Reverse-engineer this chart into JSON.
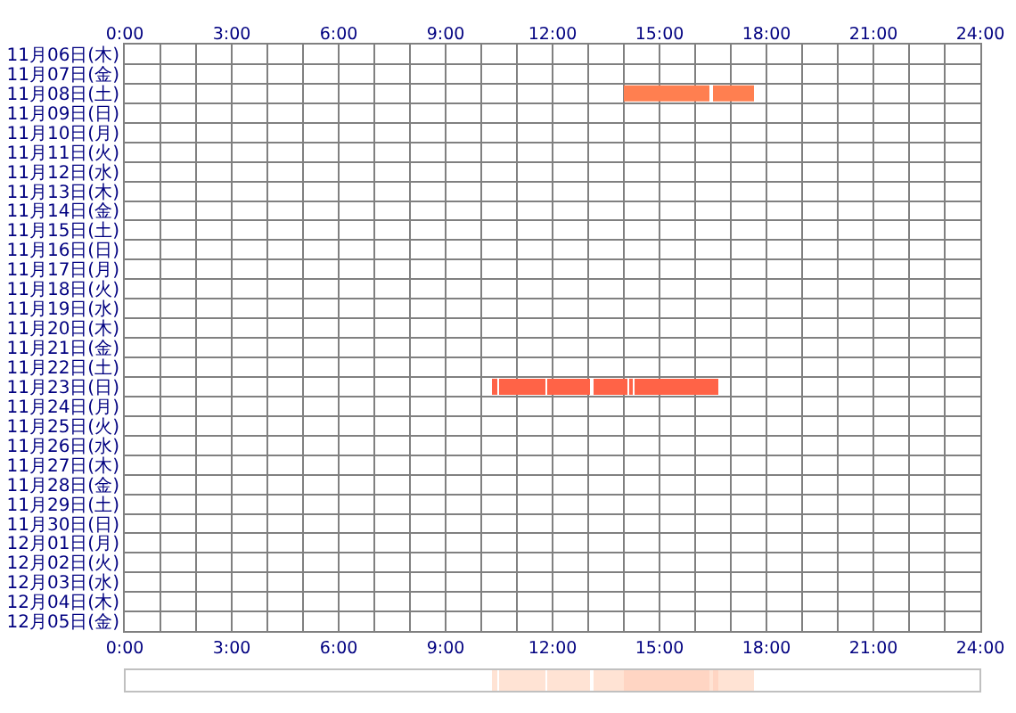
{
  "chart_data": [
    {
      "type": "bar",
      "orientation": "horizontal",
      "categories": [
        "11月06日(木)",
        "11月07日(金)",
        "11月08日(土)",
        "11月09日(日)",
        "11月10日(月)",
        "11月11日(火)",
        "11月12日(水)",
        "11月13日(木)",
        "11月14日(金)",
        "11月15日(土)",
        "11月16日(日)",
        "11月17日(月)",
        "11月18日(火)",
        "11月19日(水)",
        "11月20日(木)",
        "11月21日(金)",
        "11月22日(土)",
        "11月23日(日)",
        "11月24日(月)",
        "11月25日(火)",
        "11月26日(水)",
        "11月27日(木)",
        "11月28日(金)",
        "11月29日(土)",
        "11月30日(日)",
        "12月01日(月)",
        "12月02日(火)",
        "12月03日(水)",
        "12月04日(木)",
        "12月05日(金)"
      ],
      "series": [
        {
          "color": "#ff7f50",
          "values": [
            null,
            null,
            2.4,
            null,
            null,
            null,
            null,
            null,
            null,
            null,
            null,
            null,
            null,
            null,
            null,
            null,
            null,
            null,
            null,
            null,
            null,
            null,
            null,
            null,
            null,
            null,
            null,
            null,
            null,
            null
          ],
          "base": [
            null,
            null,
            14.0,
            null,
            null,
            null,
            null,
            null,
            null,
            null,
            null,
            null,
            null,
            null,
            null,
            null,
            null,
            null,
            null,
            null,
            null,
            null,
            null,
            null,
            null,
            null,
            null,
            null,
            null,
            null
          ]
        },
        {
          "color": "#ff7f50",
          "values": [
            null,
            null,
            1.15,
            null,
            null,
            null,
            null,
            null,
            null,
            null,
            null,
            null,
            null,
            null,
            null,
            null,
            null,
            null,
            null,
            null,
            null,
            null,
            null,
            null,
            null,
            null,
            null,
            null,
            null,
            null
          ],
          "base": [
            null,
            null,
            16.5,
            null,
            null,
            null,
            null,
            null,
            null,
            null,
            null,
            null,
            null,
            null,
            null,
            null,
            null,
            null,
            null,
            null,
            null,
            null,
            null,
            null,
            null,
            null,
            null,
            null,
            null,
            null
          ]
        },
        {
          "color": "#ff6347",
          "values": [
            null,
            null,
            null,
            null,
            null,
            null,
            null,
            null,
            null,
            null,
            null,
            null,
            null,
            null,
            null,
            null,
            null,
            0.15,
            null,
            null,
            null,
            null,
            null,
            null,
            null,
            null,
            null,
            null,
            null,
            null
          ],
          "base": [
            null,
            null,
            null,
            null,
            null,
            null,
            null,
            null,
            null,
            null,
            null,
            null,
            null,
            null,
            null,
            null,
            null,
            10.3,
            null,
            null,
            null,
            null,
            null,
            null,
            null,
            null,
            null,
            null,
            null,
            null
          ]
        },
        {
          "color": "#ff6347",
          "values": [
            null,
            null,
            null,
            null,
            null,
            null,
            null,
            null,
            null,
            null,
            null,
            null,
            null,
            null,
            null,
            null,
            null,
            1.3,
            null,
            null,
            null,
            null,
            null,
            null,
            null,
            null,
            null,
            null,
            null,
            null
          ],
          "base": [
            null,
            null,
            null,
            null,
            null,
            null,
            null,
            null,
            null,
            null,
            null,
            null,
            null,
            null,
            null,
            null,
            null,
            10.5,
            null,
            null,
            null,
            null,
            null,
            null,
            null,
            null,
            null,
            null,
            null,
            null
          ]
        },
        {
          "color": "#ff6347",
          "values": [
            null,
            null,
            null,
            null,
            null,
            null,
            null,
            null,
            null,
            null,
            null,
            null,
            null,
            null,
            null,
            null,
            null,
            1.2,
            null,
            null,
            null,
            null,
            null,
            null,
            null,
            null,
            null,
            null,
            null,
            null
          ],
          "base": [
            null,
            null,
            null,
            null,
            null,
            null,
            null,
            null,
            null,
            null,
            null,
            null,
            null,
            null,
            null,
            null,
            null,
            11.85,
            null,
            null,
            null,
            null,
            null,
            null,
            null,
            null,
            null,
            null,
            null,
            null
          ]
        },
        {
          "color": "#ff6347",
          "values": [
            null,
            null,
            null,
            null,
            null,
            null,
            null,
            null,
            null,
            null,
            null,
            null,
            null,
            null,
            null,
            null,
            null,
            0.95,
            null,
            null,
            null,
            null,
            null,
            null,
            null,
            null,
            null,
            null,
            null,
            null
          ],
          "base": [
            null,
            null,
            null,
            null,
            null,
            null,
            null,
            null,
            null,
            null,
            null,
            null,
            null,
            null,
            null,
            null,
            null,
            13.15,
            null,
            null,
            null,
            null,
            null,
            null,
            null,
            null,
            null,
            null,
            null,
            null
          ]
        },
        {
          "color": "#ff6347",
          "values": [
            null,
            null,
            null,
            null,
            null,
            null,
            null,
            null,
            null,
            null,
            null,
            null,
            null,
            null,
            null,
            null,
            null,
            0.1,
            null,
            null,
            null,
            null,
            null,
            null,
            null,
            null,
            null,
            null,
            null,
            null
          ],
          "base": [
            null,
            null,
            null,
            null,
            null,
            null,
            null,
            null,
            null,
            null,
            null,
            null,
            null,
            null,
            null,
            null,
            null,
            14.15,
            null,
            null,
            null,
            null,
            null,
            null,
            null,
            null,
            null,
            null,
            null,
            null
          ]
        },
        {
          "color": "#ff6347",
          "values": [
            null,
            null,
            null,
            null,
            null,
            null,
            null,
            null,
            null,
            null,
            null,
            null,
            null,
            null,
            null,
            null,
            null,
            2.35,
            null,
            null,
            null,
            null,
            null,
            null,
            null,
            null,
            null,
            null,
            null,
            null
          ],
          "base": [
            null,
            null,
            null,
            null,
            null,
            null,
            null,
            null,
            null,
            null,
            null,
            null,
            null,
            null,
            null,
            null,
            null,
            14.3,
            null,
            null,
            null,
            null,
            null,
            null,
            null,
            null,
            null,
            null,
            null,
            null
          ]
        }
      ],
      "xlim": [
        0,
        24
      ],
      "xticks": [
        {
          "value": 0,
          "label": "0:00"
        },
        {
          "value": 1,
          "label": null
        },
        {
          "value": 2,
          "label": null
        },
        {
          "value": 3,
          "label": "3:00"
        },
        {
          "value": 4,
          "label": null
        },
        {
          "value": 5,
          "label": null
        },
        {
          "value": 6,
          "label": "6:00"
        },
        {
          "value": 7,
          "label": null
        },
        {
          "value": 8,
          "label": null
        },
        {
          "value": 9,
          "label": "9:00"
        },
        {
          "value": 10,
          "label": null
        },
        {
          "value": 11,
          "label": null
        },
        {
          "value": 12,
          "label": "12:00"
        },
        {
          "value": 13,
          "label": null
        },
        {
          "value": 14,
          "label": null
        },
        {
          "value": 15,
          "label": "15:00"
        },
        {
          "value": 16,
          "label": null
        },
        {
          "value": 17,
          "label": null
        },
        {
          "value": 18,
          "label": "18:00"
        },
        {
          "value": 19,
          "label": null
        },
        {
          "value": 20,
          "label": null
        },
        {
          "value": 21,
          "label": "21:00"
        },
        {
          "value": 22,
          "label": null
        },
        {
          "value": 23,
          "label": null
        },
        {
          "value": 24,
          "label": "24:00"
        }
      ],
      "x2lim": [
        0,
        24
      ],
      "x2ticks": [
        {
          "value": 0,
          "label": "0:00"
        },
        {
          "value": 1,
          "label": null
        },
        {
          "value": 2,
          "label": null
        },
        {
          "value": 3,
          "label": "3:00"
        },
        {
          "value": 4,
          "label": null
        },
        {
          "value": 5,
          "label": null
        },
        {
          "value": 6,
          "label": "6:00"
        },
        {
          "value": 7,
          "label": null
        },
        {
          "value": 8,
          "label": null
        },
        {
          "value": 9,
          "label": "9:00"
        },
        {
          "value": 10,
          "label": null
        },
        {
          "value": 11,
          "label": null
        },
        {
          "value": 12,
          "label": "12:00"
        },
        {
          "value": 13,
          "label": null
        },
        {
          "value": 14,
          "label": null
        },
        {
          "value": 15,
          "label": "15:00"
        },
        {
          "value": 16,
          "label": null
        },
        {
          "value": 17,
          "label": null
        },
        {
          "value": 18,
          "label": "18:00"
        },
        {
          "value": 19,
          "label": null
        },
        {
          "value": 20,
          "label": null
        },
        {
          "value": 21,
          "label": "21:00"
        },
        {
          "value": 22,
          "label": null
        },
        {
          "value": 23,
          "label": null
        },
        {
          "value": 24,
          "label": "24:00"
        }
      ],
      "grid": true
    },
    {
      "type": "bar",
      "orientation": "horizontal",
      "categories": [
        null
      ],
      "series": [
        {
          "color": "#ffe3d4",
          "values": [
            0.15
          ],
          "base": [
            10.3
          ]
        },
        {
          "color": "#ffe3d4",
          "values": [
            1.3
          ],
          "base": [
            10.5
          ]
        },
        {
          "color": "#ffe3d4",
          "values": [
            1.2
          ],
          "base": [
            11.85
          ]
        },
        {
          "color": "#ffe3d4",
          "values": [
            0.85
          ],
          "base": [
            13.15
          ]
        },
        {
          "color": "#ffd5c3",
          "values": [
            2.4
          ],
          "base": [
            14.0
          ]
        },
        {
          "color": "#ffe3d4",
          "values": [
            0.1
          ],
          "base": [
            16.4
          ]
        },
        {
          "color": "#ffd5c3",
          "values": [
            0.15
          ],
          "base": [
            16.5
          ]
        },
        {
          "color": "#ffe3d4",
          "values": [
            1.0
          ],
          "base": [
            16.65
          ]
        }
      ],
      "xlim": [
        0,
        24
      ],
      "tick_labels": false
    }
  ]
}
